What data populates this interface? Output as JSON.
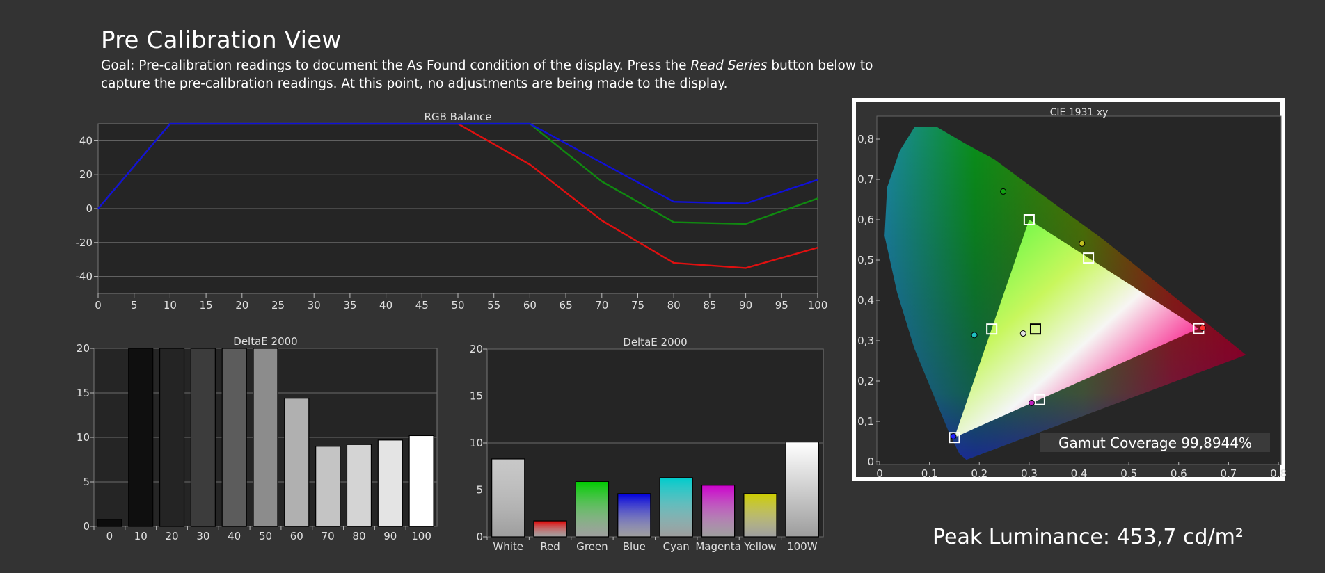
{
  "page": {
    "title": "Pre Calibration View",
    "goal_before": "Goal: Pre-calibration readings to document the As Found condition of the display. Press the ",
    "goal_emph": "Read Series",
    "goal_after": " button below to capture the pre-calibration readings. At this point, no adjustments are being made to the display.",
    "peak_luminance": "Peak Luminance: 453,7 cd/m²"
  },
  "colors": {
    "background": "#333333",
    "plot_bg": "#252525",
    "red": "#e01010",
    "green": "#108a10",
    "blue": "#1010d8"
  },
  "chart_data": [
    {
      "id": "rgb",
      "type": "line",
      "title": "RGB Balance",
      "x": [
        0,
        10,
        20,
        30,
        40,
        50,
        60,
        70,
        80,
        90,
        100
      ],
      "xticks": [
        0,
        5,
        10,
        15,
        20,
        25,
        30,
        35,
        40,
        45,
        50,
        55,
        60,
        65,
        70,
        75,
        80,
        85,
        90,
        95,
        100
      ],
      "ylim": [
        -50,
        50
      ],
      "yticks": [
        40,
        20,
        0,
        -20,
        -40
      ],
      "grid": true,
      "series": [
        {
          "color": "#e01010",
          "values": [
            0,
            50,
            50,
            50,
            50,
            50,
            26,
            -7,
            -32,
            -35,
            -23
          ]
        },
        {
          "color": "#108a10",
          "values": [
            0,
            50,
            50,
            50,
            50,
            50,
            50,
            16,
            -8,
            -9,
            6
          ]
        },
        {
          "color": "#1010d8",
          "values": [
            0,
            50,
            50,
            50,
            50,
            50,
            50,
            27,
            4,
            3,
            17
          ]
        }
      ]
    },
    {
      "id": "grayscale",
      "type": "bar",
      "title": "DeltaE 2000",
      "categories": [
        "0",
        "10",
        "20",
        "30",
        "40",
        "50",
        "60",
        "70",
        "80",
        "90",
        "100"
      ],
      "values": [
        0.8,
        20,
        20,
        20,
        20,
        20,
        14.4,
        9,
        9.2,
        9.7,
        10.2
      ],
      "colors": [
        "#0c0c0c",
        "#0f0f0f",
        "#242424",
        "#3c3c3c",
        "#5c5c5c",
        "#8c8c8c",
        "#b0b0b0",
        "#c4c4c4",
        "#d4d4d4",
        "#e4e4e4",
        "#ffffff"
      ],
      "ylim": [
        0,
        20
      ],
      "yticks": [
        0,
        5,
        10,
        15,
        20
      ],
      "grid": true
    },
    {
      "id": "colors",
      "type": "bar",
      "title": "DeltaE 2000",
      "categories": [
        "White",
        "Red",
        "Green",
        "Blue",
        "Cyan",
        "Magenta",
        "Yellow",
        "100W"
      ],
      "values": [
        8.3,
        1.7,
        5.9,
        4.6,
        6.3,
        5.5,
        4.6,
        10.1
      ],
      "colors": [
        "#c8c8c8",
        "#dd0000",
        "#00cc00",
        "#0000dd",
        "#00cccc",
        "#cc00cc",
        "#cccc00",
        "#ffffff"
      ],
      "ylim": [
        0,
        20
      ],
      "yticks": [
        0,
        5,
        10,
        15,
        20
      ],
      "grid": true
    },
    {
      "id": "cie",
      "type": "scatter",
      "title": "CIE 1931 xy",
      "xlim": [
        0,
        0.8
      ],
      "ylim": [
        0,
        0.85
      ],
      "xticks": [
        "0",
        "0,1",
        "0,2",
        "0,3",
        "0,4",
        "0,5",
        "0,6",
        "0,7",
        "0,8"
      ],
      "yticks": [
        "0",
        "0,1",
        "0,2",
        "0,3",
        "0,4",
        "0,5",
        "0,6",
        "0,7",
        "0,8"
      ],
      "gamut_coverage": "Gamut Coverage 99,8944%",
      "gamut_triangle": [
        [
          0.64,
          0.33
        ],
        [
          0.3,
          0.6
        ],
        [
          0.15,
          0.06
        ]
      ],
      "targets": [
        {
          "name": "Red",
          "x": 0.64,
          "y": 0.33
        },
        {
          "name": "Green",
          "x": 0.3,
          "y": 0.6
        },
        {
          "name": "Blue",
          "x": 0.15,
          "y": 0.06
        },
        {
          "name": "Cyan",
          "x": 0.225,
          "y": 0.329
        },
        {
          "name": "Magenta",
          "x": 0.321,
          "y": 0.154
        },
        {
          "name": "Yellow",
          "x": 0.419,
          "y": 0.505
        },
        {
          "name": "White",
          "x": 0.3127,
          "y": 0.329
        }
      ],
      "measured": [
        {
          "name": "Red",
          "x": 0.648,
          "y": 0.332,
          "color": "#ff3030"
        },
        {
          "name": "Green",
          "x": 0.248,
          "y": 0.67,
          "color": "#10a010"
        },
        {
          "name": "Blue",
          "x": 0.148,
          "y": 0.063,
          "color": "#2020ff"
        },
        {
          "name": "Cyan",
          "x": 0.19,
          "y": 0.314,
          "color": "#20c0c0"
        },
        {
          "name": "Magenta",
          "x": 0.305,
          "y": 0.146,
          "color": "#c020c0"
        },
        {
          "name": "Yellow",
          "x": 0.406,
          "y": 0.541,
          "color": "#c0c020"
        },
        {
          "name": "White",
          "x": 0.288,
          "y": 0.318,
          "color": "#e0e0e0"
        }
      ]
    }
  ]
}
